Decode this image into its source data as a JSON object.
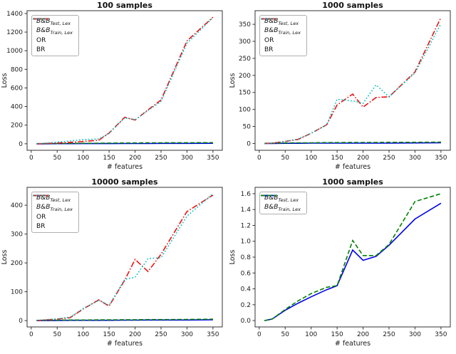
{
  "figure": {
    "background": "#ffffff"
  },
  "chart_data": [
    {
      "type": "line",
      "title": "100 samples",
      "xlabel": "# features",
      "ylabel": "Loss",
      "grid": false,
      "legend_position": "upper-left",
      "xlim": [
        -8,
        368
      ],
      "ylim": [
        -70,
        1430
      ],
      "xticks": [
        0,
        50,
        100,
        150,
        200,
        250,
        300,
        350
      ],
      "yticks": [
        0,
        200,
        400,
        600,
        800,
        1000,
        1200,
        1400
      ],
      "yticklabels": [
        "0",
        "200",
        "400",
        "600",
        "800",
        "1000",
        "1200",
        "1400"
      ],
      "x": [
        10,
        25,
        50,
        75,
        100,
        130,
        150,
        180,
        200,
        225,
        250,
        300,
        350
      ],
      "series": [
        {
          "name": "bb-test-lex",
          "label_main": "B&B",
          "label_sub": "Test, Lex",
          "italic": true,
          "color": "#0000ee",
          "linestyle": "solid",
          "values": [
            0,
            0,
            1,
            1,
            2,
            2,
            2,
            3,
            3,
            3,
            4,
            4,
            5
          ]
        },
        {
          "name": "bb-train-lex",
          "label_main": "B&B",
          "label_sub": "Train, Lex",
          "italic": true,
          "color": "#008000",
          "linestyle": "dashed",
          "values": [
            1,
            2,
            3,
            4,
            5,
            6,
            7,
            8,
            9,
            10,
            10,
            11,
            12
          ]
        },
        {
          "name": "or",
          "label_main": "OR",
          "label_sub": "",
          "italic": false,
          "color": "#ee1111",
          "linestyle": "dashdot",
          "values": [
            0,
            2,
            8,
            15,
            25,
            38,
            115,
            285,
            255,
            365,
            470,
            1105,
            1360
          ]
        },
        {
          "name": "br",
          "label_main": "BR",
          "label_sub": "",
          "italic": false,
          "color": "#00bcbc",
          "linestyle": "dotted",
          "values": [
            2,
            6,
            18,
            30,
            45,
            52,
            112,
            278,
            258,
            358,
            455,
            1080,
            1355
          ]
        }
      ]
    },
    {
      "type": "line",
      "title": "1000 samples",
      "xlabel": "# features",
      "ylabel": "Loss",
      "grid": false,
      "legend_position": "upper-left",
      "xlim": [
        -8,
        368
      ],
      "ylim": [
        -20,
        390
      ],
      "xticks": [
        0,
        50,
        100,
        150,
        200,
        250,
        300,
        350
      ],
      "yticks": [
        0,
        50,
        100,
        150,
        200,
        250,
        300,
        350
      ],
      "yticklabels": [
        "0",
        "50",
        "100",
        "150",
        "200",
        "250",
        "300",
        "350"
      ],
      "x": [
        10,
        25,
        50,
        75,
        100,
        130,
        150,
        180,
        200,
        225,
        250,
        300,
        350
      ],
      "series": [
        {
          "name": "bb-test-lex",
          "label_main": "B&B",
          "label_sub": "Test, Lex",
          "italic": true,
          "color": "#0000ee",
          "linestyle": "solid",
          "values": [
            0,
            0,
            0.5,
            0.5,
            1,
            1,
            1,
            1,
            1,
            1,
            1,
            1.5,
            2
          ]
        },
        {
          "name": "bb-train-lex",
          "label_main": "B&B",
          "label_sub": "Train, Lex",
          "italic": true,
          "color": "#008000",
          "linestyle": "dashed",
          "values": [
            0.5,
            1,
            1.5,
            2,
            2,
            2.5,
            2.5,
            3,
            3,
            3,
            3.5,
            3.5,
            4
          ]
        },
        {
          "name": "or",
          "label_main": "OR",
          "label_sub": "",
          "italic": false,
          "color": "#ee1111",
          "linestyle": "dashdot",
          "values": [
            0,
            1,
            6,
            12,
            30,
            55,
            113,
            145,
            107,
            135,
            137,
            210,
            370
          ]
        },
        {
          "name": "br",
          "label_main": "BR",
          "label_sub": "",
          "italic": false,
          "color": "#00bcbc",
          "linestyle": "dotted",
          "values": [
            0,
            1,
            6,
            13,
            30,
            55,
            130,
            125,
            118,
            172,
            137,
            207,
            352
          ]
        }
      ]
    },
    {
      "type": "line",
      "title": "10000 samples",
      "xlabel": "# features",
      "ylabel": "Loss",
      "grid": false,
      "legend_position": "upper-left",
      "xlim": [
        -8,
        368
      ],
      "ylim": [
        -22,
        462
      ],
      "xticks": [
        0,
        50,
        100,
        150,
        200,
        250,
        300,
        350
      ],
      "yticks": [
        0,
        100,
        200,
        300,
        400
      ],
      "yticklabels": [
        "0",
        "100",
        "200",
        "300",
        "400"
      ],
      "x": [
        10,
        25,
        50,
        75,
        100,
        130,
        150,
        180,
        200,
        225,
        250,
        300,
        350
      ],
      "series": [
        {
          "name": "bb-test-lex",
          "label_main": "B&B",
          "label_sub": "Test, Lex",
          "italic": true,
          "color": "#0000ee",
          "linestyle": "solid",
          "values": [
            0,
            0,
            0.5,
            1,
            1,
            1,
            1,
            1.5,
            1.5,
            2,
            2,
            2,
            3
          ]
        },
        {
          "name": "bb-train-lex",
          "label_main": "B&B",
          "label_sub": "Train, Lex",
          "italic": true,
          "color": "#008000",
          "linestyle": "dashed",
          "values": [
            0.5,
            1,
            1.5,
            2,
            2,
            2.5,
            2.5,
            3,
            3,
            3.5,
            3.5,
            4,
            5
          ]
        },
        {
          "name": "or",
          "label_main": "OR",
          "label_sub": "",
          "italic": false,
          "color": "#ee1111",
          "linestyle": "dashdot",
          "values": [
            0,
            2,
            5,
            10,
            40,
            72,
            50,
            140,
            212,
            170,
            230,
            378,
            435
          ]
        },
        {
          "name": "br",
          "label_main": "BR",
          "label_sub": "",
          "italic": false,
          "color": "#00bcbc",
          "linestyle": "dotted",
          "values": [
            1,
            3,
            6,
            12,
            42,
            70,
            53,
            143,
            150,
            215,
            218,
            362,
            440
          ]
        }
      ]
    },
    {
      "type": "line",
      "title": "1000 samples",
      "xlabel": "# features",
      "ylabel": "Loss",
      "grid": false,
      "legend_position": "upper-left",
      "xlim": [
        -8,
        368
      ],
      "ylim": [
        -0.08,
        1.68
      ],
      "xticks": [
        0,
        50,
        100,
        150,
        200,
        250,
        300,
        350
      ],
      "yticks": [
        0,
        0.2,
        0.4,
        0.6,
        0.8,
        1.0,
        1.2,
        1.4,
        1.6
      ],
      "yticklabels": [
        "0.0",
        "0.2",
        "0.4",
        "0.6",
        "0.8",
        "1.0",
        "1.2",
        "1.4",
        "1.6"
      ],
      "x": [
        10,
        25,
        50,
        75,
        100,
        130,
        150,
        180,
        200,
        225,
        250,
        300,
        350
      ],
      "series": [
        {
          "name": "bb-test-lex",
          "label_main": "B&B",
          "label_sub": "Test, Lex",
          "italic": true,
          "color": "#0000ee",
          "linestyle": "solid",
          "values": [
            0,
            0.02,
            0.13,
            0.22,
            0.3,
            0.39,
            0.44,
            0.89,
            0.76,
            0.81,
            0.95,
            1.28,
            1.48
          ]
        },
        {
          "name": "bb-train-lex",
          "label_main": "B&B",
          "label_sub": "Train, Lex",
          "italic": true,
          "color": "#008000",
          "linestyle": "dashed",
          "values": [
            0,
            0.02,
            0.14,
            0.25,
            0.34,
            0.42,
            0.44,
            1.01,
            0.82,
            0.82,
            0.96,
            1.5,
            1.6
          ]
        }
      ]
    }
  ]
}
